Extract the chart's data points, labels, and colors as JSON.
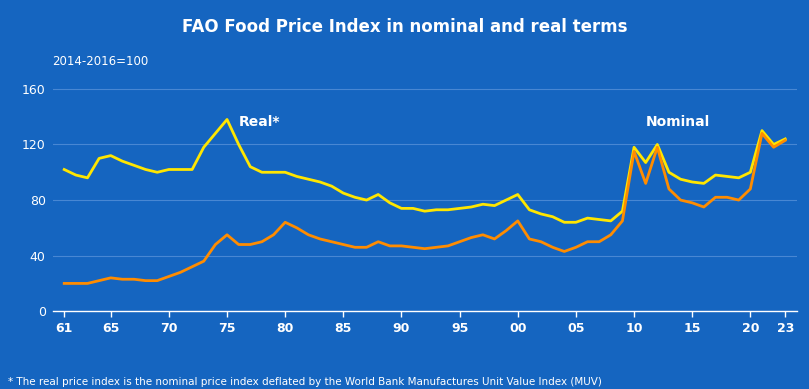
{
  "title": "FAO Food Price Index in nominal and real terms",
  "subtitle": "2014-2016=100",
  "footnote": "* The real price index is the nominal price index deflated by the World Bank Manufactures Unit Value Index (MUV)",
  "background_color": "#1565C0",
  "title_bg_color": "#1A237E",
  "title_color": "#FFFFFF",
  "text_color": "#FFFFFF",
  "grid_color": "#5590D9",
  "real_color": "#FFE600",
  "nominal_color": "#FF8C00",
  "x_tick_labels": [
    "61",
    "65",
    "70",
    "75",
    "80",
    "85",
    "90",
    "95",
    "00",
    "05",
    "10",
    "15",
    "20",
    "23"
  ],
  "ylim": [
    0,
    168
  ],
  "yticks": [
    0,
    40,
    80,
    120,
    160
  ],
  "x_values": [
    61,
    62,
    63,
    64,
    65,
    66,
    67,
    68,
    69,
    70,
    71,
    72,
    73,
    74,
    75,
    76,
    77,
    78,
    79,
    80,
    81,
    82,
    83,
    84,
    85,
    86,
    87,
    88,
    89,
    90,
    91,
    92,
    93,
    94,
    95,
    96,
    97,
    98,
    99,
    100,
    101,
    102,
    103,
    104,
    105,
    106,
    107,
    108,
    109,
    110,
    111,
    112,
    113,
    114,
    115,
    116,
    117,
    118,
    119,
    120,
    121,
    122,
    123
  ],
  "real_values": [
    102,
    98,
    96,
    110,
    112,
    108,
    105,
    102,
    100,
    102,
    102,
    102,
    118,
    128,
    138,
    120,
    104,
    100,
    100,
    100,
    97,
    95,
    93,
    90,
    85,
    82,
    80,
    84,
    78,
    74,
    74,
    72,
    73,
    73,
    74,
    75,
    77,
    76,
    80,
    84,
    73,
    70,
    68,
    64,
    64,
    67,
    66,
    65,
    72,
    118,
    107,
    120,
    100,
    95,
    93,
    92,
    98,
    97,
    96,
    100,
    130,
    120,
    124
  ],
  "nominal_values": [
    20,
    20,
    20,
    22,
    24,
    23,
    23,
    22,
    22,
    25,
    28,
    32,
    36,
    48,
    55,
    48,
    48,
    50,
    55,
    64,
    60,
    55,
    52,
    50,
    48,
    46,
    46,
    50,
    47,
    47,
    46,
    45,
    46,
    47,
    50,
    53,
    55,
    52,
    58,
    65,
    52,
    50,
    46,
    43,
    46,
    50,
    50,
    55,
    65,
    115,
    92,
    118,
    88,
    80,
    78,
    75,
    82,
    82,
    80,
    88,
    128,
    118,
    123
  ]
}
